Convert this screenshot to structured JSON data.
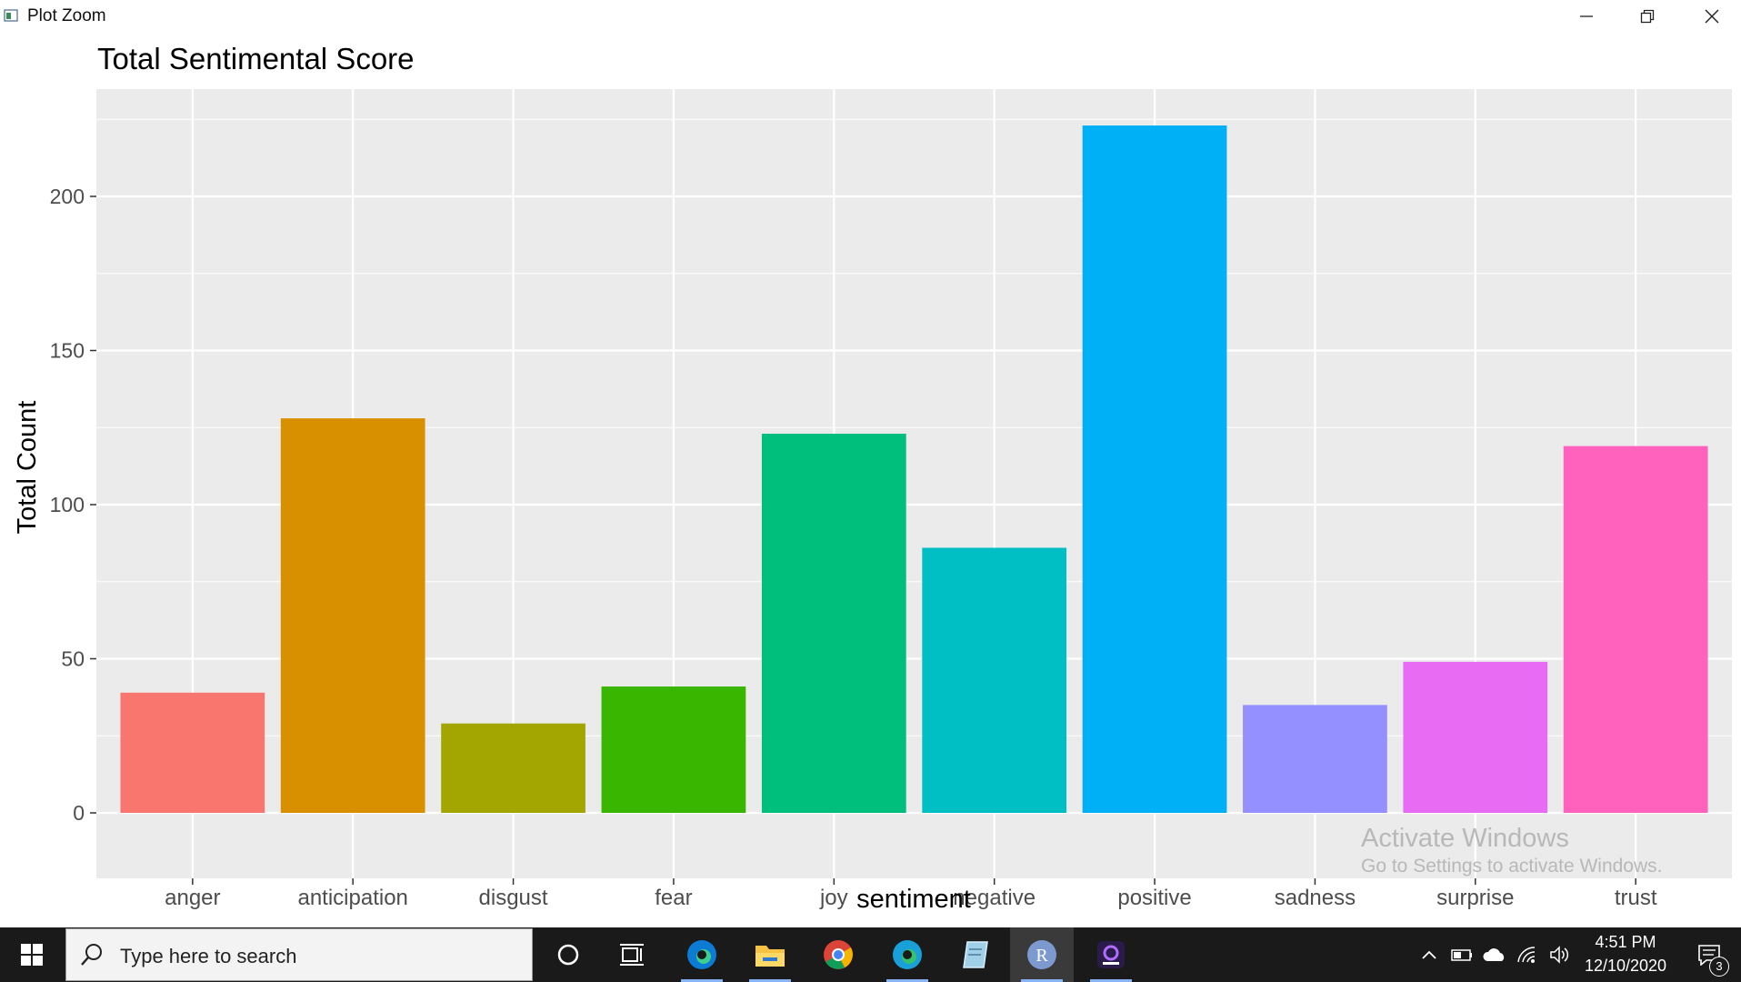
{
  "window": {
    "title": "Plot Zoom"
  },
  "chart_data": {
    "type": "bar",
    "title": "Total Sentimental Score",
    "xlabel": "sentiment",
    "ylabel": "Total Count",
    "categories": [
      "anger",
      "anticipation",
      "disgust",
      "fear",
      "joy",
      "negative",
      "positive",
      "sadness",
      "surprise",
      "trust"
    ],
    "values": [
      39,
      128,
      29,
      41,
      123,
      86,
      223,
      35,
      49,
      119
    ],
    "colors": [
      "#F8766D",
      "#D89000",
      "#A3A500",
      "#39B600",
      "#00BF7D",
      "#00BFC4",
      "#00B0F6",
      "#9590FF",
      "#E76BF3",
      "#FF62BC"
    ],
    "ylim": [
      0,
      230
    ],
    "yticks": [
      0,
      50,
      100,
      150,
      200
    ],
    "grid": true,
    "legend": "none",
    "panel_background": "#EBEBEB"
  },
  "watermark": {
    "title": "Activate Windows",
    "subtitle": "Go to Settings to activate Windows."
  },
  "taskbar": {
    "search_placeholder": "Type here to search",
    "clock_time": "4:51 PM",
    "clock_date": "12/10/2020",
    "notification_count": "3",
    "r_label": "R",
    "apps": [
      "cortana-icon",
      "task-view-icon",
      "edge-icon",
      "file-explorer-icon",
      "chrome-icon",
      "edge-beta-icon",
      "notepad-icon",
      "r-icon",
      "purple-app-icon"
    ]
  }
}
